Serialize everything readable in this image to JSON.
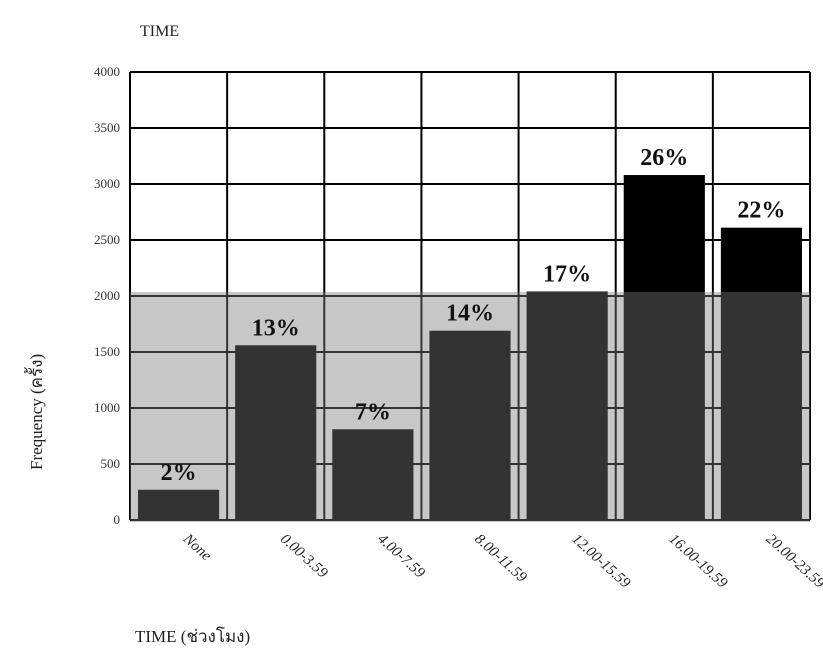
{
  "chart_data": {
    "type": "bar",
    "title": "TIME",
    "xlabel": "TIME (ช่วงโมง)",
    "ylabel": "Frequency (ครั้ง)",
    "ylim": [
      0,
      4000
    ],
    "yticks": [
      0,
      500,
      1000,
      1500,
      2000,
      2500,
      3000,
      3500,
      4000
    ],
    "categories": [
      "None",
      "0.00-3.59",
      "4.00-7.59",
      "8.00-11.59",
      "12.00-15.59",
      "16.00-19.59",
      "20.00-23.59"
    ],
    "values": [
      270,
      1560,
      810,
      1690,
      2040,
      3080,
      2610
    ],
    "data_labels": [
      "2%",
      "13%",
      "7%",
      "14%",
      "17%",
      "26%",
      "22%"
    ],
    "grid": true,
    "colors": {
      "bar": "#000000",
      "overlay": "#7a7a7a",
      "grid": "#000000"
    }
  }
}
